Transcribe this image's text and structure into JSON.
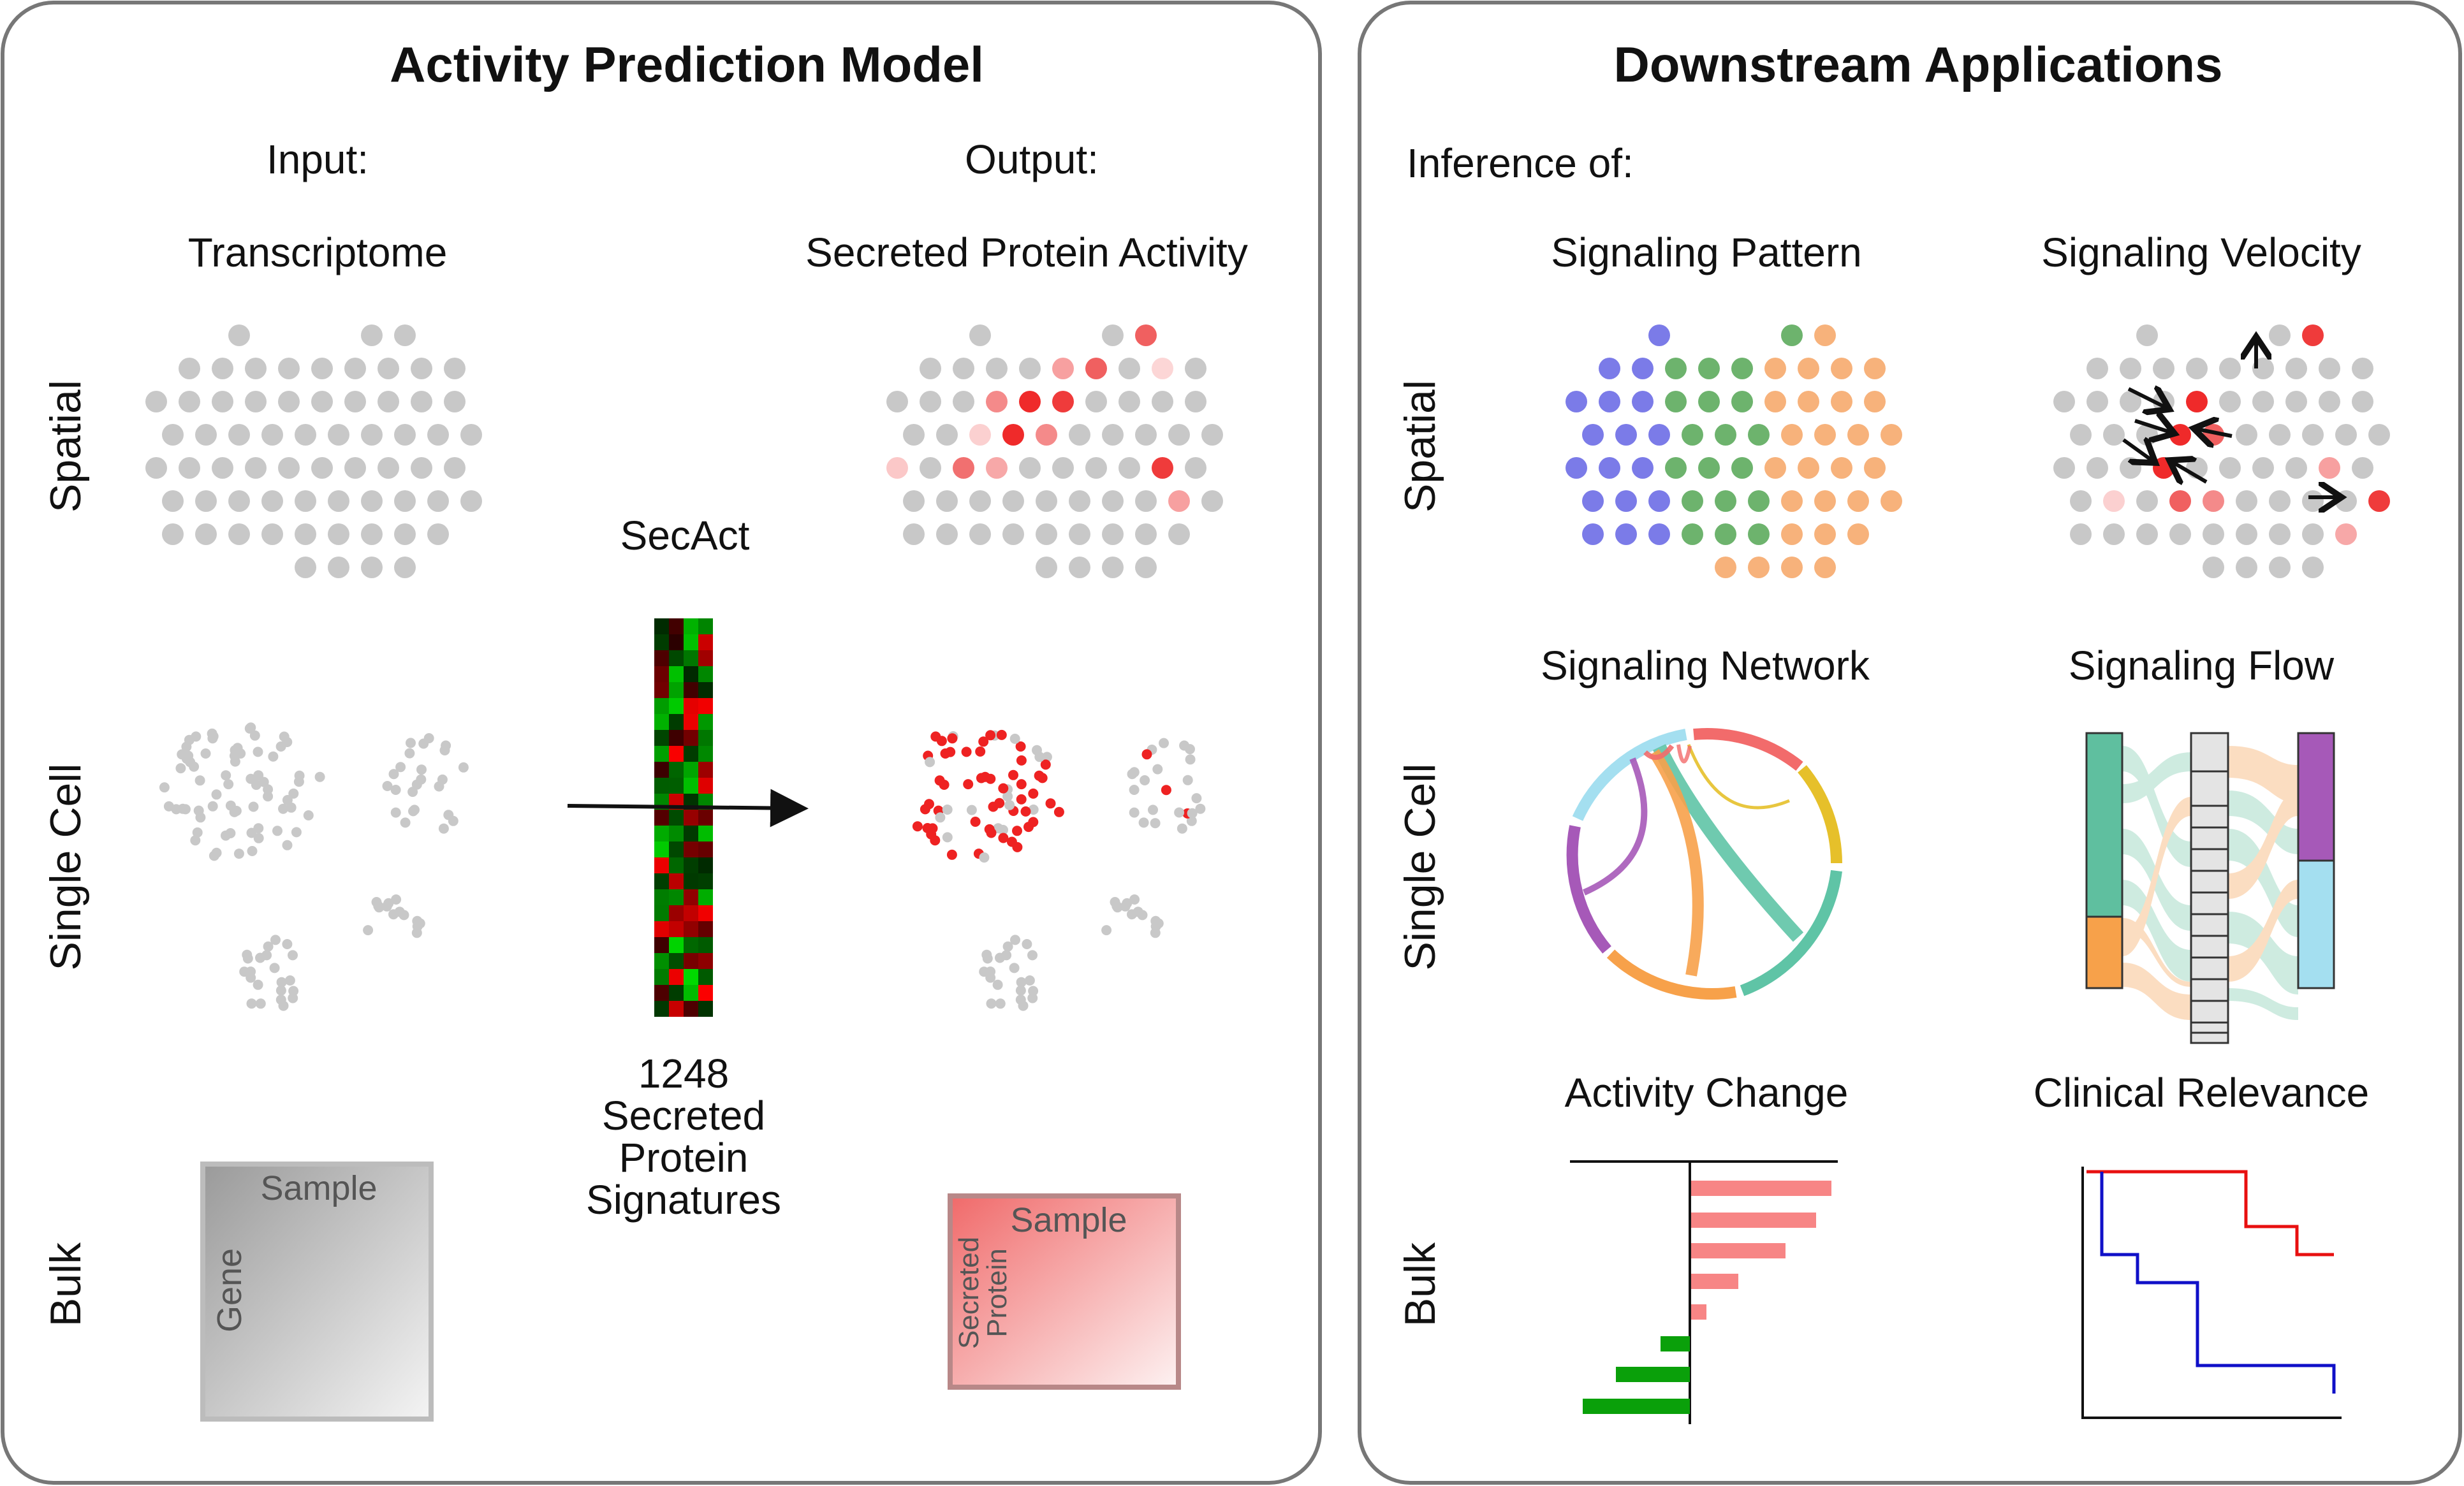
{
  "left_panel": {
    "title": "Activity Prediction Model",
    "input_label": "Input:",
    "input_name": "Transcriptome",
    "output_label": "Output:",
    "output_name": "Secreted Protein Activity",
    "model_name": "SecAct",
    "signature_count": "1248",
    "signature_line2": "Secreted",
    "signature_line3": "Protein",
    "signature_line4": "Signatures",
    "bulk_input_col": "Sample",
    "bulk_input_row": "Gene",
    "bulk_output_col": "Sample",
    "bulk_output_row1": "Secreted",
    "bulk_output_row2": "Protein"
  },
  "right_panel": {
    "title": "Downstream Applications",
    "inference_label": "Inference of:",
    "signaling_pattern": "Signaling Pattern",
    "signaling_velocity": "Signaling Velocity",
    "signaling_network": "Signaling Network",
    "signaling_flow": "Signaling Flow",
    "activity_change": "Activity Change",
    "clinical_relevance": "Clinical Relevance"
  },
  "row_labels": {
    "spatial": "Spatial",
    "single_cell": "Single Cell",
    "bulk": "Bulk"
  },
  "colors": {
    "spot_gray": "#c8c8c8",
    "red": "#ee2222",
    "pattern_blue": "#7b7be8",
    "pattern_green": "#6db36d",
    "pattern_orange": "#f7b27b",
    "bar_pos": "#f78585",
    "bar_neg": "#0aa00a",
    "km_red": "#e81010",
    "km_blue": "#1010c8"
  }
}
